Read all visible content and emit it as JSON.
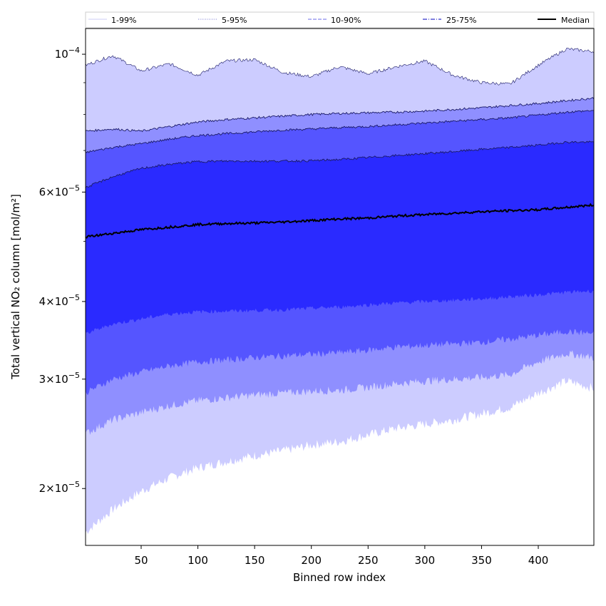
{
  "chart_data": {
    "type": "area",
    "xlabel": "Binned row index",
    "ylabel": "Total vertical NO₂ column [mol/m²]",
    "y_scale": "log",
    "xlim": [
      1,
      449
    ],
    "ylim": [
      1.62e-05,
      0.00011
    ],
    "x_ticks": [
      50,
      100,
      150,
      200,
      250,
      300,
      350,
      400
    ],
    "y_ticks": [
      {
        "value": 2e-05,
        "mantissa": "2",
        "exponent": "−5"
      },
      {
        "value": 3e-05,
        "mantissa": "3",
        "exponent": "−5"
      },
      {
        "value": 4e-05,
        "mantissa": "4",
        "exponent": "−5"
      },
      {
        "value": 6e-05,
        "mantissa": "6",
        "exponent": "−5"
      },
      {
        "value": 0.0001,
        "mantissa": "",
        "exponent": "−4"
      }
    ],
    "grid": false,
    "legend_position": "top",
    "legend": [
      {
        "label": "1-99%",
        "style": "solid",
        "color": "#d6d6f7"
      },
      {
        "label": "5-95%",
        "style": "dotted",
        "color": "#9999dd"
      },
      {
        "label": "10-90%",
        "style": "dashed",
        "color": "#8888ee"
      },
      {
        "label": "25-75%",
        "style": "dashdot",
        "color": "#3333cc"
      },
      {
        "label": "Median",
        "style": "solid",
        "color": "#000000"
      }
    ],
    "x": [
      1,
      25,
      50,
      75,
      100,
      125,
      150,
      175,
      200,
      225,
      250,
      275,
      300,
      325,
      350,
      375,
      400,
      425,
      449
    ],
    "bands": [
      {
        "name": "1-99%",
        "color": "#ccccff",
        "lower": [
          1.7e-05,
          1.85e-05,
          1.98e-05,
          2.08e-05,
          2.16e-05,
          2.21e-05,
          2.26e-05,
          2.3e-05,
          2.35e-05,
          2.38e-05,
          2.44e-05,
          2.5e-05,
          2.54e-05,
          2.58e-05,
          2.64e-05,
          2.7e-05,
          2.85e-05,
          2.98e-05,
          2.9e-05
        ],
        "upper": [
          9.6e-05,
          9.95e-05,
          9.4e-05,
          9.65e-05,
          9.25e-05,
          9.75e-05,
          9.8e-05,
          9.35e-05,
          9.2e-05,
          9.55e-05,
          9.3e-05,
          9.55e-05,
          9.75e-05,
          9.25e-05,
          9e-05,
          8.95e-05,
          9.6e-05,
          0.000102,
          0.000101
        ]
      },
      {
        "name": "5-95%",
        "color": "#8f8fff",
        "lower": [
          2.45e-05,
          2.58e-05,
          2.65e-05,
          2.72e-05,
          2.77e-05,
          2.8e-05,
          2.83e-05,
          2.85e-05,
          2.87e-05,
          2.88e-05,
          2.91e-05,
          2.95e-05,
          2.98e-05,
          3e-05,
          3.02e-05,
          3.05e-05,
          3.2e-05,
          3.3e-05,
          3.25e-05
        ],
        "upper": [
          7.52e-05,
          7.58e-05,
          7.52e-05,
          7.65e-05,
          7.78e-05,
          7.85e-05,
          7.9e-05,
          7.95e-05,
          8e-05,
          8.03e-05,
          8.05e-05,
          8.07e-05,
          8.1e-05,
          8.15e-05,
          8.2e-05,
          8.27e-05,
          8.33e-05,
          8.42e-05,
          8.5e-05
        ]
      },
      {
        "name": "10-90%",
        "color": "#5555ff",
        "lower": [
          2.85e-05,
          3e-05,
          3.08e-05,
          3.15e-05,
          3.2e-05,
          3.22e-05,
          3.25e-05,
          3.27e-05,
          3.29e-05,
          3.31e-05,
          3.34e-05,
          3.38e-05,
          3.4e-05,
          3.42e-05,
          3.44e-05,
          3.48e-05,
          3.53e-05,
          3.58e-05,
          3.55e-05
        ],
        "upper": [
          6.95e-05,
          7.08e-05,
          7.18e-05,
          7.3e-05,
          7.4e-05,
          7.45e-05,
          7.5e-05,
          7.55e-05,
          7.58e-05,
          7.62e-05,
          7.65e-05,
          7.7e-05,
          7.75e-05,
          7.8e-05,
          7.85e-05,
          7.9e-05,
          7.98e-05,
          8.07e-05,
          8.12e-05
        ]
      },
      {
        "name": "25-75%",
        "color": "#2a2aff",
        "lower": [
          3.55e-05,
          3.68e-05,
          3.75e-05,
          3.82e-05,
          3.85e-05,
          3.86e-05,
          3.87e-05,
          3.88e-05,
          3.9e-05,
          3.92e-05,
          3.95e-05,
          3.98e-05,
          4e-05,
          4.02e-05,
          4.04e-05,
          4.07e-05,
          4.1e-05,
          4.14e-05,
          4.16e-05
        ],
        "upper": [
          6.1e-05,
          6.35e-05,
          6.55e-05,
          6.65e-05,
          6.72e-05,
          6.73e-05,
          6.73e-05,
          6.73e-05,
          6.74e-05,
          6.77e-05,
          6.82e-05,
          6.87e-05,
          6.92e-05,
          6.97e-05,
          7.03e-05,
          7.08e-05,
          7.14e-05,
          7.22e-05,
          7.22e-05
        ]
      }
    ],
    "median": {
      "name": "Median",
      "color": "#000000",
      "values": [
        5.08e-05,
        5.15e-05,
        5.22e-05,
        5.27e-05,
        5.32e-05,
        5.34e-05,
        5.35e-05,
        5.37e-05,
        5.4e-05,
        5.43e-05,
        5.45e-05,
        5.49e-05,
        5.52e-05,
        5.55e-05,
        5.58e-05,
        5.6e-05,
        5.62e-05,
        5.67e-05,
        5.72e-05
      ]
    }
  }
}
